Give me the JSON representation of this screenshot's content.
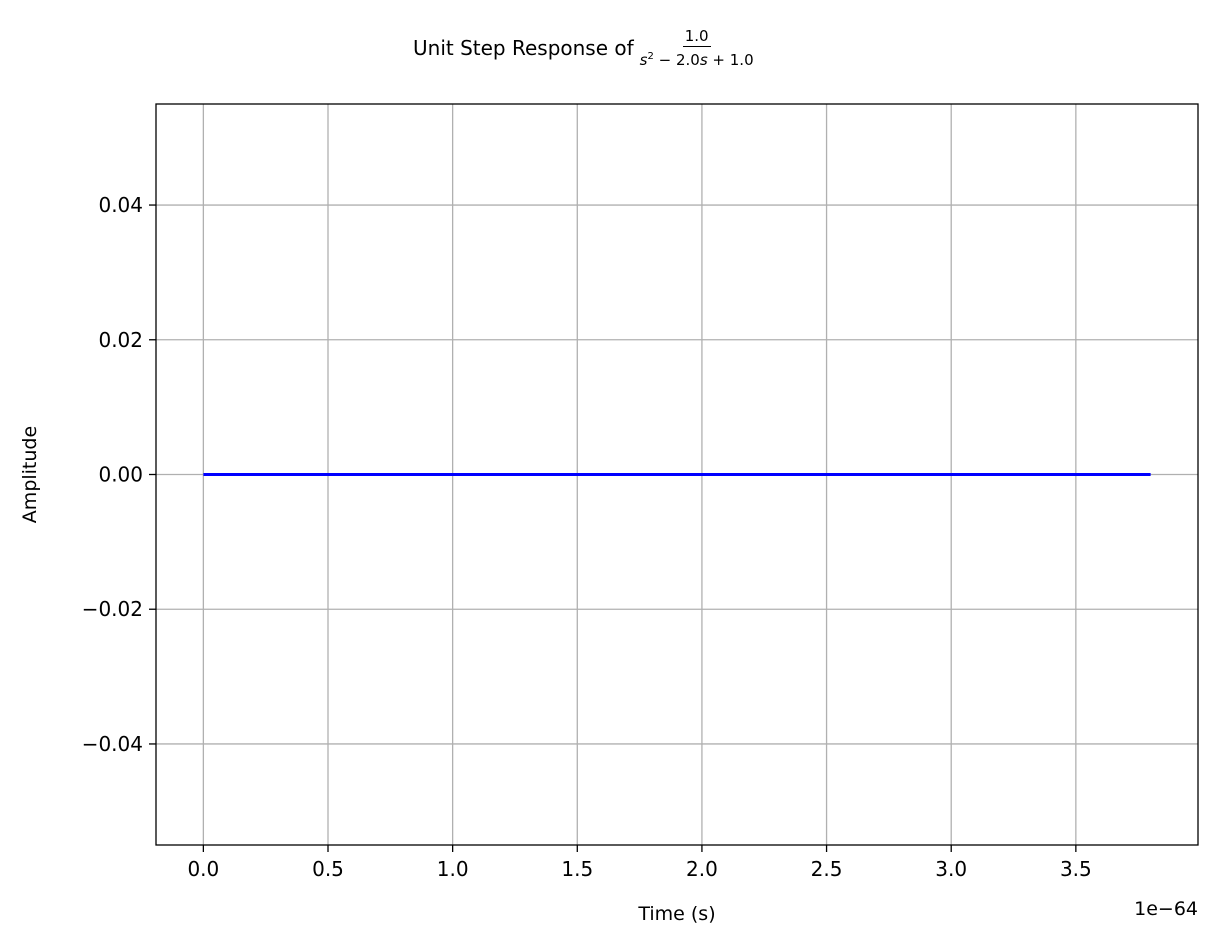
{
  "chart_data": {
    "type": "line",
    "title": "Unit Step Response of",
    "transfer_function": {
      "numerator": "1.0",
      "denominator": {
        "s": "s",
        "exponent": "2",
        "rest": " − 2.0",
        "s2": "s",
        "tail": " + 1.0"
      }
    },
    "xlabel": "Time (s)",
    "ylabel": "Amplitude",
    "x_offset_label": "1e−64",
    "xlim": [
      -0.19,
      3.99
    ],
    "ylim": [
      -0.055,
      0.055
    ],
    "x_ticks": [
      0.0,
      0.5,
      1.0,
      1.5,
      2.0,
      2.5,
      3.0,
      3.5
    ],
    "x_tick_labels": [
      "0.0",
      "0.5",
      "1.0",
      "1.5",
      "2.0",
      "2.5",
      "3.0",
      "3.5"
    ],
    "y_ticks": [
      -0.04,
      -0.02,
      0.0,
      0.02,
      0.04
    ],
    "y_tick_labels": [
      "−0.04",
      "−0.02",
      "0.00",
      "0.02",
      "0.04"
    ],
    "grid": true,
    "series": [
      {
        "color": "#0000ff",
        "x": [
          0.0,
          3.8
        ],
        "y": [
          0.0,
          0.0
        ]
      }
    ]
  }
}
